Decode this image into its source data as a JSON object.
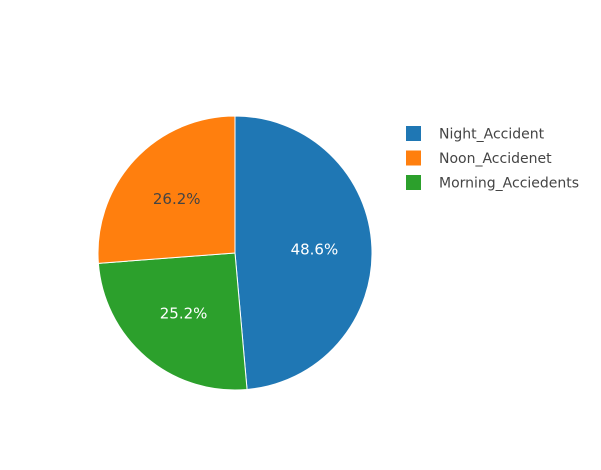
{
  "chart_data": {
    "type": "pie",
    "title": "",
    "legend_position": "top-right",
    "slices": [
      {
        "name": "Night_Accident",
        "percent": 48.6,
        "label": "48.6%",
        "color": "#1f77b4",
        "label_color": "#ffffff"
      },
      {
        "name": "Morning_Acciedents",
        "percent": 25.2,
        "label": "25.2%",
        "color": "#2ca02c",
        "label_color": "#ffffff"
      },
      {
        "name": "Noon_Accidenet",
        "percent": 26.2,
        "label": "26.2%",
        "color": "#ff7f0e",
        "label_color": "#444444"
      }
    ],
    "legend": [
      {
        "name": "Night_Accident",
        "color": "#1f77b4"
      },
      {
        "name": "Noon_Accidenet",
        "color": "#ff7f0e"
      },
      {
        "name": "Morning_Acciedents",
        "color": "#2ca02c"
      }
    ]
  }
}
